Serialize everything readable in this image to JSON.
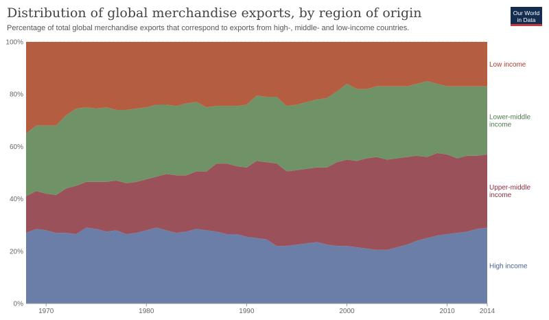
{
  "title": "Distribution of global merchandise exports, by region of origin",
  "subtitle": "Percentage of total global merchandise exports that correspond to exports from high-, middle- and low-income countries.",
  "logo": {
    "line1": "Our World",
    "line2": "in Data"
  },
  "chart_data": {
    "type": "area",
    "stacked": true,
    "x": [
      1968,
      1969,
      1970,
      1971,
      1972,
      1973,
      1974,
      1975,
      1976,
      1977,
      1978,
      1979,
      1980,
      1981,
      1982,
      1983,
      1984,
      1985,
      1986,
      1987,
      1988,
      1989,
      1990,
      1991,
      1992,
      1993,
      1994,
      1995,
      1996,
      1997,
      1998,
      1999,
      2000,
      2001,
      2002,
      2003,
      2004,
      2005,
      2006,
      2007,
      2008,
      2009,
      2010,
      2011,
      2012,
      2013,
      2014
    ],
    "xlim": [
      1968,
      2014
    ],
    "ylim": [
      0,
      100
    ],
    "x_ticks": [
      1970,
      1980,
      1990,
      2000,
      2010,
      2014
    ],
    "y_ticks": [
      0,
      20,
      40,
      60,
      80,
      100
    ],
    "y_tick_labels": [
      "0%",
      "20%",
      "40%",
      "60%",
      "80%",
      "100%"
    ],
    "series": [
      {
        "name": "High income",
        "color": "#6b7ea8",
        "label_lines": [
          "High income"
        ],
        "label_color": "#4a5f94",
        "values": [
          27,
          28.5,
          28,
          27,
          27,
          26.5,
          29,
          28.5,
          27.5,
          28,
          26.5,
          27,
          28,
          29,
          28,
          27,
          27.5,
          28.5,
          28,
          27.5,
          26.5,
          26.5,
          25.5,
          25,
          24.5,
          22,
          22,
          22.5,
          23,
          23.5,
          22.5,
          22,
          22,
          21.5,
          21,
          20.5,
          20.5,
          21.5,
          22.5,
          24,
          25,
          26,
          26.5,
          27,
          27.5,
          28.5,
          29
        ]
      },
      {
        "name": "Upper-middle income",
        "color": "#9a5159",
        "label_lines": [
          "Upper-middle",
          "income"
        ],
        "label_color": "#8b2f3c",
        "values": [
          14,
          14.5,
          14,
          14.5,
          17,
          18.5,
          17.5,
          18,
          19,
          19,
          19.5,
          19.5,
          19.5,
          19.5,
          21.5,
          22,
          21.5,
          22,
          22.5,
          26,
          27,
          26,
          26.5,
          29.5,
          29.5,
          31.5,
          28.5,
          28.5,
          28.5,
          28.5,
          29.5,
          32,
          33,
          33,
          34.5,
          35.5,
          34.5,
          34,
          33.5,
          32.5,
          31,
          31.5,
          30.5,
          28.5,
          29,
          28,
          28
        ]
      },
      {
        "name": "Lower-middle income",
        "color": "#6f9366",
        "label_lines": [
          "Lower-middle",
          "income"
        ],
        "label_color": "#4f7a4a",
        "values": [
          24,
          25,
          26,
          26.5,
          28,
          29.5,
          28.5,
          28,
          28.5,
          27,
          28,
          28,
          27.5,
          27.5,
          26.5,
          26.5,
          27.5,
          26.5,
          24.5,
          22,
          22,
          23,
          24,
          25,
          25,
          25.5,
          25,
          25,
          25.5,
          26,
          26.5,
          27,
          29,
          27.5,
          26.5,
          27,
          28,
          27.5,
          27,
          27.5,
          29,
          26.5,
          26,
          27.5,
          26.5,
          26.5,
          26
        ]
      },
      {
        "name": "Low income",
        "color": "#b55d40",
        "label_lines": [
          "Low income"
        ],
        "label_color": "#b03a2a",
        "values": [
          35,
          32,
          32,
          32,
          28,
          25.5,
          25,
          25.5,
          25,
          26,
          26,
          25.5,
          25,
          24,
          24,
          24.5,
          23.5,
          23,
          25,
          24.5,
          24.5,
          24.5,
          24,
          20.5,
          21,
          21,
          24.5,
          24,
          23,
          22,
          21.5,
          19,
          16,
          18,
          18,
          17,
          17,
          17,
          17,
          16,
          15,
          16,
          17,
          17,
          17,
          17,
          17
        ]
      }
    ]
  }
}
